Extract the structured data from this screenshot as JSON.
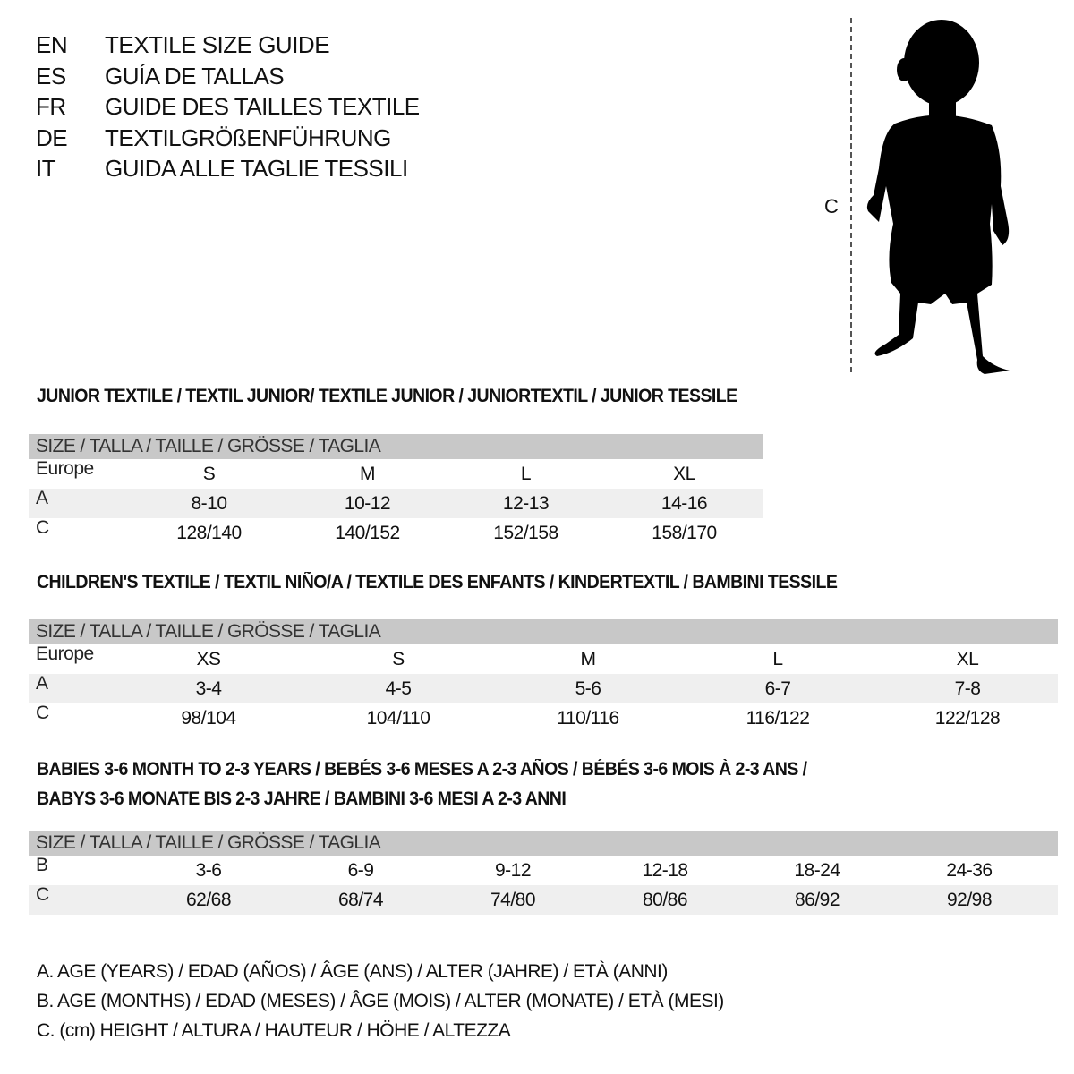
{
  "languages": [
    {
      "code": "EN",
      "title": "TEXTILE SIZE GUIDE"
    },
    {
      "code": "ES",
      "title": "GUÍA DE TALLAS"
    },
    {
      "code": "FR",
      "title": "GUIDE DES TAILLES TEXTILE"
    },
    {
      "code": "DE",
      "title": "TEXTILGRÖßENFÜHRUNG"
    },
    {
      "code": "IT",
      "title": "GUIDA ALLE TAGLIE TESSILI"
    }
  ],
  "figure": {
    "icon": "baby-silhouette-icon",
    "measure_label": "C"
  },
  "sections": [
    {
      "title": [
        "JUNIOR TEXTILE / TEXTIL JUNIOR/ TEXTILE JUNIOR / JUNIORTEXTIL / JUNIOR TESSILE"
      ],
      "header": "SIZE / TALLA / TAILLE / GRÖSSE / TAGLIA",
      "rows": [
        {
          "label": "Europe",
          "values": [
            "S",
            "M",
            "L",
            "XL"
          ]
        },
        {
          "label": "A",
          "values": [
            "8-10",
            "10-12",
            "12-13",
            "14-16"
          ]
        },
        {
          "label": "C",
          "values": [
            "128/140",
            "140/152",
            "152/158",
            "158/170"
          ]
        }
      ]
    },
    {
      "title": [
        "CHILDREN'S TEXTILE / TEXTIL NIÑO/A / TEXTILE DES ENFANTS / KINDERTEXTIL / BAMBINI TESSILE"
      ],
      "header": "SIZE / TALLA / TAILLE / GRÖSSE / TAGLIA",
      "rows": [
        {
          "label": "Europe",
          "values": [
            "XS",
            "S",
            "M",
            "L",
            "XL"
          ]
        },
        {
          "label": "A",
          "values": [
            "3-4",
            "4-5",
            "5-6",
            "6-7",
            "7-8"
          ]
        },
        {
          "label": "C",
          "values": [
            "98/104",
            "104/110",
            "110/116",
            "116/122",
            "122/128"
          ]
        }
      ]
    },
    {
      "title": [
        "BABIES 3-6 MONTH TO 2-3 YEARS / BEBÉS 3-6 MESES A 2-3 AÑOS / BÉBÉS 3-6 MOIS À 2-3 ANS /",
        "BABYS 3-6 MONATE BIS 2-3 JAHRE / BAMBINI 3-6 MESI A 2-3 ANNI"
      ],
      "header": "SIZE / TALLA / TAILLE / GRÖSSE / TAGLIA",
      "rows": [
        {
          "label": "B",
          "values": [
            "3-6",
            "6-9",
            "9-12",
            "12-18",
            "18-24",
            "24-36"
          ]
        },
        {
          "label": "C",
          "values": [
            "62/68",
            "68/74",
            "74/80",
            "80/86",
            "86/92",
            "92/98"
          ]
        }
      ]
    }
  ],
  "legend": [
    "A. AGE (YEARS) / EDAD (AÑOS) / ÂGE (ANS) / ALTER (JAHRE) / ETÀ (ANNI)",
    "B. AGE (MONTHS) / EDAD (MESES) / ÂGE (MOIS) / ALTER (MONATE) / ETÀ (MESI)",
    "C. (cm) HEIGHT / ALTURA / HAUTEUR / HÖHE / ALTEZZA"
  ],
  "colors": {
    "header_bar": "#c8c8c8",
    "alt_row": "#efefef",
    "text": "#111111"
  }
}
